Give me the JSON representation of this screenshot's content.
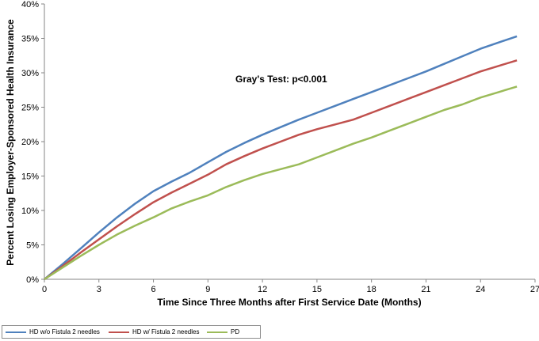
{
  "chart_data": {
    "type": "line",
    "xlabel": "Time Since Three Months after First Service Date (Months)",
    "ylabel": "Percent Losing Employer-Sponsored Health Insurance",
    "xlim": [
      0,
      27
    ],
    "ylim": [
      0,
      40
    ],
    "x_ticks": [
      "0",
      "3",
      "6",
      "9",
      "12",
      "15",
      "18",
      "21",
      "24",
      "27"
    ],
    "y_ticks": [
      "0%",
      "5%",
      "10%",
      "15%",
      "20%",
      "25%",
      "30%",
      "35%",
      "40%"
    ],
    "annotation": "Gray's Test: p<0.001",
    "legend_position": "bottom-left",
    "grid": false,
    "series": [
      {
        "name": "HD w/o Fistula 2 needles",
        "color": "#4f81bd",
        "x": [
          0,
          1,
          2,
          3,
          4,
          5,
          6,
          7,
          8,
          9,
          10,
          11,
          12,
          13,
          14,
          15,
          16,
          17,
          18,
          19,
          20,
          21,
          22,
          23,
          24,
          25,
          26
        ],
        "y": [
          0,
          2.2,
          4.5,
          6.8,
          9.0,
          11.0,
          12.8,
          14.2,
          15.5,
          17.0,
          18.5,
          19.8,
          21.0,
          22.1,
          23.2,
          24.2,
          25.2,
          26.2,
          27.2,
          28.2,
          29.2,
          30.2,
          31.3,
          32.4,
          33.5,
          34.4,
          35.3
        ]
      },
      {
        "name": "HD w/ Fistula 2 needles",
        "color": "#c0504d",
        "x": [
          0,
          1,
          2,
          3,
          4,
          5,
          6,
          7,
          8,
          9,
          10,
          11,
          12,
          13,
          14,
          15,
          16,
          17,
          18,
          19,
          20,
          21,
          22,
          23,
          24,
          25,
          26
        ],
        "y": [
          0,
          1.9,
          3.9,
          5.8,
          7.7,
          9.5,
          11.2,
          12.6,
          13.9,
          15.2,
          16.7,
          17.9,
          19.0,
          20.0,
          21.0,
          21.8,
          22.5,
          23.2,
          24.2,
          25.2,
          26.2,
          27.2,
          28.2,
          29.2,
          30.2,
          31.0,
          31.8
        ]
      },
      {
        "name": "PD",
        "color": "#9bbb59",
        "x": [
          0,
          1,
          2,
          3,
          4,
          5,
          6,
          7,
          8,
          9,
          10,
          11,
          12,
          13,
          14,
          15,
          16,
          17,
          18,
          19,
          20,
          21,
          22,
          23,
          24,
          25,
          26
        ],
        "y": [
          0,
          1.7,
          3.4,
          5.0,
          6.5,
          7.8,
          9.0,
          10.3,
          11.3,
          12.2,
          13.4,
          14.4,
          15.3,
          16.0,
          16.7,
          17.7,
          18.7,
          19.7,
          20.6,
          21.6,
          22.6,
          23.6,
          24.6,
          25.4,
          26.4,
          27.2,
          28.0
        ]
      }
    ]
  }
}
